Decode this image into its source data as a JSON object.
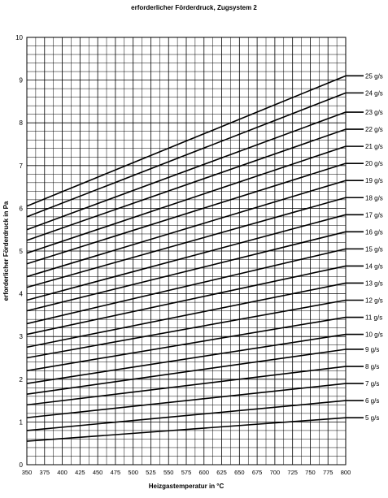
{
  "chart_data": {
    "type": "line",
    "title": "erforderlicher Förderdruck, Zugsystem 2",
    "xlabel": "Heizgastemperatur in °C",
    "ylabel": "erforderlicher Förderdruck in Pa",
    "xlim": [
      350,
      800
    ],
    "ylim": [
      0,
      10
    ],
    "x_ticks": [
      "350",
      "375",
      "400",
      "425",
      "450",
      "475",
      "500",
      "525",
      "550",
      "575",
      "600",
      "625",
      "650",
      "675",
      "700",
      "725",
      "750",
      "775",
      "800"
    ],
    "y_ticks": [
      "0",
      "1",
      "2",
      "3",
      "4",
      "5",
      "6",
      "7",
      "8",
      "9",
      "10"
    ],
    "grid": true,
    "legend_placement": "right",
    "series": [
      {
        "name": "5 g/s",
        "x": [
          350,
          800
        ],
        "y": [
          0.55,
          1.1
        ]
      },
      {
        "name": "6 g/s",
        "x": [
          350,
          800
        ],
        "y": [
          0.8,
          1.5
        ]
      },
      {
        "name": "7 g/s",
        "x": [
          350,
          800
        ],
        "y": [
          1.1,
          1.9
        ]
      },
      {
        "name": "8 g/s",
        "x": [
          350,
          800
        ],
        "y": [
          1.4,
          2.3
        ]
      },
      {
        "name": "9 g/s",
        "x": [
          350,
          800
        ],
        "y": [
          1.65,
          2.7
        ]
      },
      {
        "name": "10 g/s",
        "x": [
          350,
          800
        ],
        "y": [
          1.9,
          3.05
        ]
      },
      {
        "name": "11 g/s",
        "x": [
          350,
          800
        ],
        "y": [
          2.2,
          3.45
        ]
      },
      {
        "name": "12 g/s",
        "x": [
          350,
          800
        ],
        "y": [
          2.5,
          3.85
        ]
      },
      {
        "name": "13 g/s",
        "x": [
          350,
          800
        ],
        "y": [
          2.75,
          4.25
        ]
      },
      {
        "name": "14 g/s",
        "x": [
          350,
          800
        ],
        "y": [
          3.05,
          4.65
        ]
      },
      {
        "name": "15 g/s",
        "x": [
          350,
          800
        ],
        "y": [
          3.3,
          5.05
        ]
      },
      {
        "name": "16 g/s",
        "x": [
          350,
          800
        ],
        "y": [
          3.6,
          5.45
        ]
      },
      {
        "name": "17 g/s",
        "x": [
          350,
          800
        ],
        "y": [
          3.85,
          5.85
        ]
      },
      {
        "name": "18 g/s",
        "x": [
          350,
          800
        ],
        "y": [
          4.15,
          6.25
        ]
      },
      {
        "name": "19 g/s",
        "x": [
          350,
          800
        ],
        "y": [
          4.4,
          6.65
        ]
      },
      {
        "name": "20 g/s",
        "x": [
          350,
          800
        ],
        "y": [
          4.7,
          7.05
        ]
      },
      {
        "name": "21 g/s",
        "x": [
          350,
          800
        ],
        "y": [
          4.95,
          7.45
        ]
      },
      {
        "name": "22 g/s",
        "x": [
          350,
          800
        ],
        "y": [
          5.25,
          7.85
        ]
      },
      {
        "name": "23 g/s",
        "x": [
          350,
          800
        ],
        "y": [
          5.5,
          8.25
        ]
      },
      {
        "name": "24 g/s",
        "x": [
          350,
          800
        ],
        "y": [
          5.8,
          8.7
        ]
      },
      {
        "name": "25 g/s",
        "x": [
          350,
          800
        ],
        "y": [
          6.05,
          9.1
        ]
      }
    ],
    "colors": {
      "line": "#000000",
      "grid": "#000000",
      "background": "#ffffff"
    }
  }
}
